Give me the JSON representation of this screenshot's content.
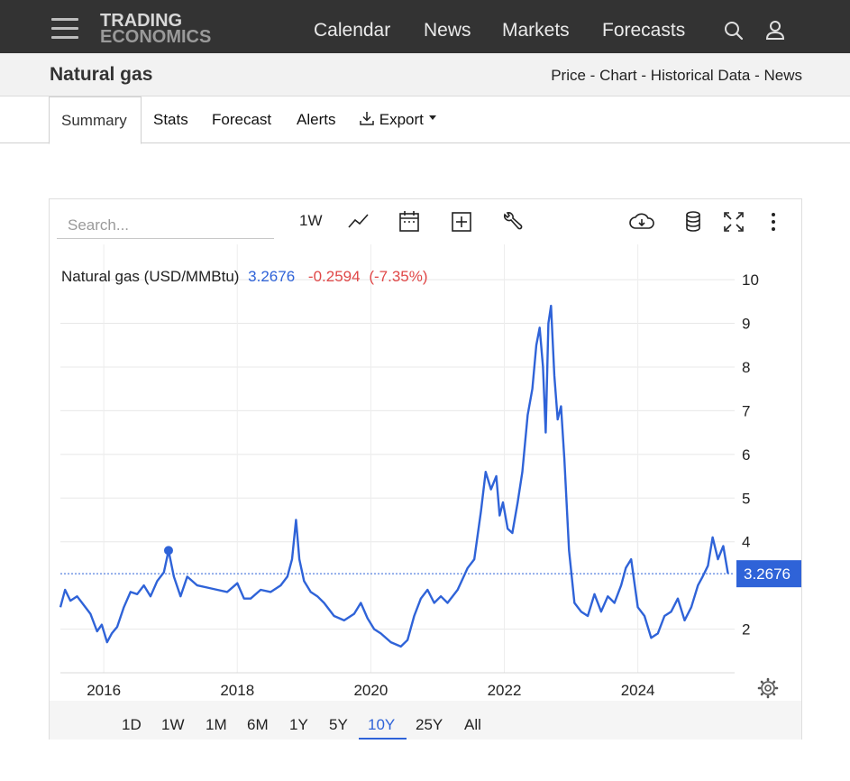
{
  "nav": {
    "logo_line1": "TRADING",
    "logo_line2": "ECONOMICS",
    "links": [
      "Calendar",
      "News",
      "Markets",
      "Forecasts"
    ],
    "icons": [
      "search-icon",
      "user-icon",
      "menu-icon"
    ]
  },
  "title_bar": {
    "title": "Natural gas",
    "breadcrumbs": [
      "Price",
      "Chart",
      "Historical Data",
      "News"
    ],
    "separator": "-"
  },
  "tabs": {
    "items": [
      "Summary",
      "Stats",
      "Forecast",
      "Alerts",
      "Export"
    ],
    "active": "Summary"
  },
  "toolbar": {
    "search_placeholder": "Search...",
    "interval": "1W",
    "icons": [
      "line-chart-icon",
      "calendar-icon",
      "add-icon",
      "wrench-icon",
      "download-cloud-icon",
      "database-icon",
      "fullscreen-icon",
      "more-icon"
    ]
  },
  "ranges": {
    "items": [
      "1D",
      "1W",
      "1M",
      "6M",
      "1Y",
      "5Y",
      "10Y",
      "25Y",
      "All"
    ],
    "active": "10Y"
  },
  "colors": {
    "line": "#2f63d8",
    "change_negative": "#e04848",
    "nav_bg": "#333333",
    "badge_bg": "#2f63d8"
  },
  "chart_data": {
    "type": "line",
    "legend": {
      "series_name": "Natural gas (USD/MMBtu)",
      "last": "3.2676",
      "change": "-0.2594",
      "change_pct": "(-7.35%)"
    },
    "current_value": 3.2676,
    "current_label": "3.2676",
    "y_ticks": [
      2,
      4,
      5,
      6,
      7,
      8,
      9,
      10
    ],
    "x_ticks": [
      "2016",
      "2018",
      "2020",
      "2022",
      "2024"
    ],
    "xlim": [
      2015.35,
      2025.45
    ],
    "ylim": [
      1,
      10.6
    ],
    "grid": true,
    "series": [
      {
        "x": [
          2015.35,
          2015.42,
          2015.5,
          2015.6,
          2015.7,
          2015.8,
          2015.9,
          2015.97,
          2016.05,
          2016.12,
          2016.2,
          2016.3,
          2016.4,
          2016.5,
          2016.6,
          2016.7,
          2016.8,
          2016.9,
          2016.97,
          2017.05,
          2017.15,
          2017.25,
          2017.4,
          2017.55,
          2017.7,
          2017.85,
          2018.0,
          2018.1,
          2018.2,
          2018.35,
          2018.5,
          2018.65,
          2018.75,
          2018.82,
          2018.88,
          2018.93,
          2019.0,
          2019.1,
          2019.2,
          2019.3,
          2019.45,
          2019.6,
          2019.75,
          2019.85,
          2019.95,
          2020.05,
          2020.15,
          2020.3,
          2020.45,
          2020.55,
          2020.65,
          2020.75,
          2020.85,
          2020.95,
          2021.05,
          2021.15,
          2021.3,
          2021.45,
          2021.55,
          2021.65,
          2021.72,
          2021.8,
          2021.88,
          2021.93,
          2021.98,
          2022.05,
          2022.12,
          2022.2,
          2022.27,
          2022.35,
          2022.42,
          2022.48,
          2022.53,
          2022.58,
          2022.62,
          2022.66,
          2022.7,
          2022.75,
          2022.8,
          2022.85,
          2022.9,
          2022.97,
          2023.05,
          2023.15,
          2023.25,
          2023.35,
          2023.45,
          2023.55,
          2023.65,
          2023.75,
          2023.82,
          2023.9,
          2024.0,
          2024.1,
          2024.2,
          2024.3,
          2024.4,
          2024.5,
          2024.6,
          2024.7,
          2024.8,
          2024.9,
          2024.97,
          2025.05,
          2025.12,
          2025.2,
          2025.28,
          2025.35
        ],
        "y": [
          2.5,
          2.9,
          2.65,
          2.75,
          2.55,
          2.35,
          1.95,
          2.1,
          1.7,
          1.9,
          2.05,
          2.5,
          2.85,
          2.8,
          3.0,
          2.75,
          3.1,
          3.3,
          3.8,
          3.2,
          2.75,
          3.2,
          3.0,
          2.95,
          2.9,
          2.85,
          3.05,
          2.7,
          2.7,
          2.9,
          2.85,
          3.0,
          3.2,
          3.6,
          4.5,
          3.6,
          3.1,
          2.85,
          2.75,
          2.6,
          2.3,
          2.2,
          2.35,
          2.6,
          2.25,
          2.0,
          1.9,
          1.7,
          1.6,
          1.75,
          2.3,
          2.7,
          2.9,
          2.6,
          2.75,
          2.6,
          2.9,
          3.4,
          3.6,
          4.7,
          5.6,
          5.2,
          5.5,
          4.6,
          4.9,
          4.3,
          4.2,
          4.9,
          5.6,
          6.9,
          7.5,
          8.5,
          8.9,
          8.0,
          6.5,
          9.0,
          9.4,
          7.8,
          6.8,
          7.1,
          5.9,
          3.8,
          2.6,
          2.4,
          2.3,
          2.8,
          2.4,
          2.75,
          2.6,
          3.0,
          3.4,
          3.6,
          2.5,
          2.3,
          1.8,
          1.9,
          2.3,
          2.4,
          2.7,
          2.2,
          2.5,
          3.0,
          3.2,
          3.45,
          4.1,
          3.6,
          3.9,
          3.27
        ]
      }
    ]
  }
}
